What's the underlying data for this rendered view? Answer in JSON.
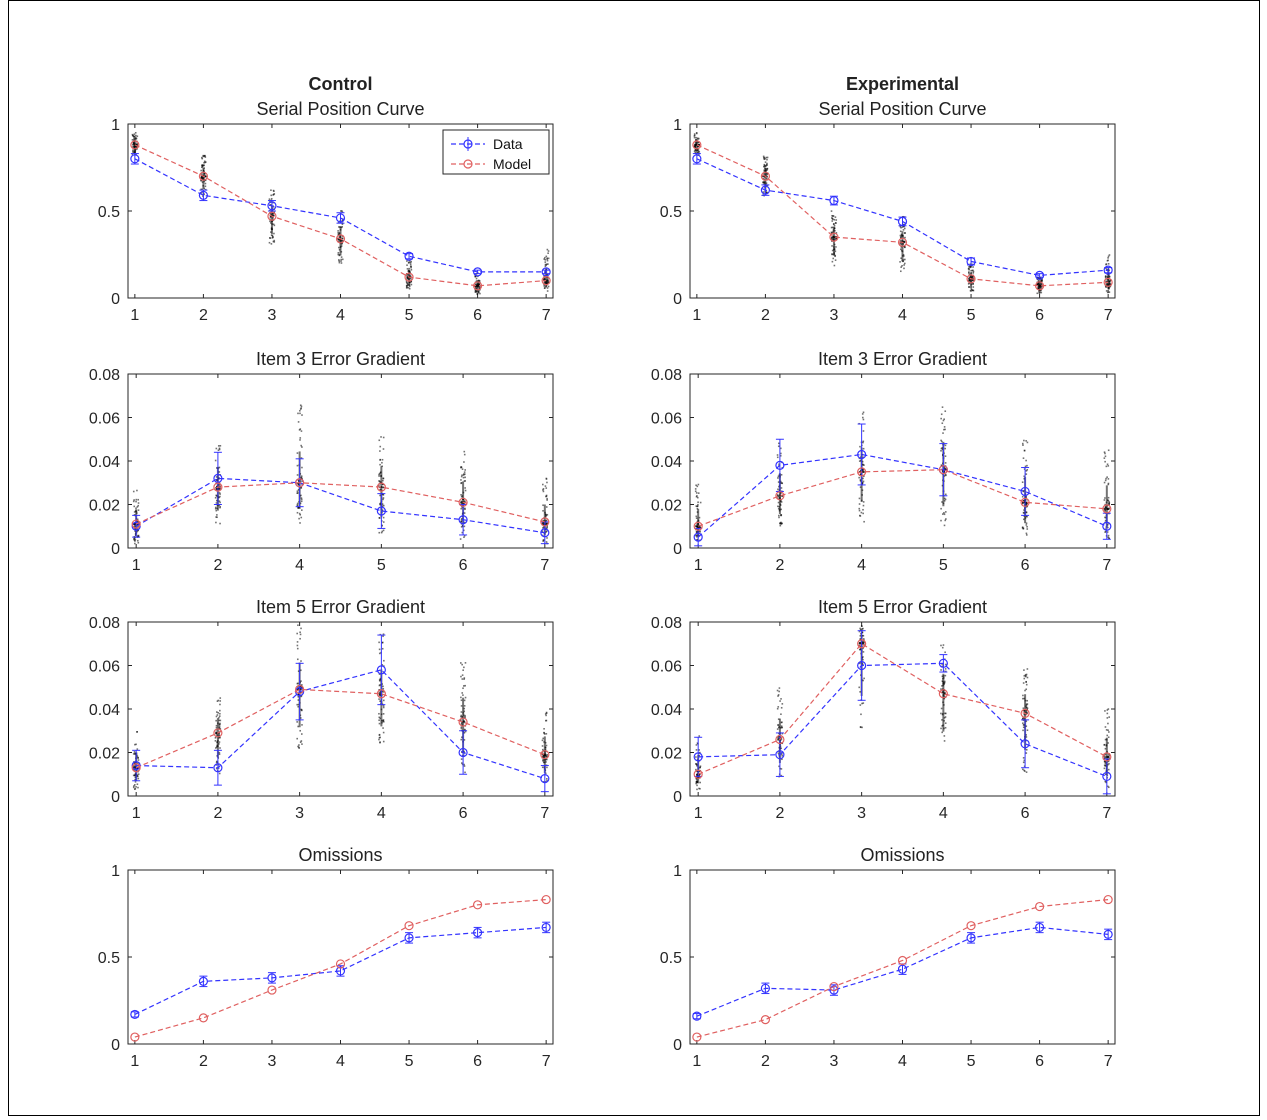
{
  "colors": {
    "data": "#3333ff",
    "model": "#e06060",
    "axis": "#262626",
    "scatter": "#000000"
  },
  "legend": {
    "data_label": "Data",
    "model_label": "Model",
    "placement": "top-right"
  },
  "chart_data": [
    {
      "type": "line",
      "column_title": "Control",
      "title": "Serial Position Curve",
      "x": [
        1,
        2,
        3,
        4,
        5,
        6,
        7
      ],
      "xticklabels": [
        "1",
        "2",
        "3",
        "4",
        "5",
        "6",
        "7"
      ],
      "ylim": [
        0,
        1
      ],
      "yticks": [
        0,
        0.5,
        1
      ],
      "yticklabels": [
        "0",
        "0.5",
        "1"
      ],
      "legend": true,
      "series": [
        {
          "name": "Data",
          "values": [
            0.8,
            0.59,
            0.53,
            0.46,
            0.24,
            0.15,
            0.15
          ],
          "err": [
            0.03,
            0.03,
            0.03,
            0.03,
            0.015,
            0.01,
            0.01
          ]
        },
        {
          "name": "Model",
          "values": [
            0.88,
            0.7,
            0.47,
            0.34,
            0.12,
            0.07,
            0.1
          ]
        }
      ],
      "spread": [
        [
          0.82,
          0.95
        ],
        [
          0.58,
          0.82
        ],
        [
          0.3,
          0.62
        ],
        [
          0.18,
          0.52
        ],
        [
          0.05,
          0.22
        ],
        [
          0.02,
          0.15
        ],
        [
          0.04,
          0.28
        ]
      ]
    },
    {
      "type": "line",
      "column_title": "Experimental",
      "title": "Serial Position Curve",
      "x": [
        1,
        2,
        3,
        4,
        5,
        6,
        7
      ],
      "xticklabels": [
        "1",
        "2",
        "3",
        "4",
        "5",
        "6",
        "7"
      ],
      "ylim": [
        0,
        1
      ],
      "yticks": [
        0,
        0.5,
        1
      ],
      "yticklabels": [
        "0",
        "0.5",
        "1"
      ],
      "legend": false,
      "series": [
        {
          "name": "Data",
          "values": [
            0.8,
            0.62,
            0.56,
            0.44,
            0.21,
            0.13,
            0.16
          ],
          "err": [
            0.03,
            0.03,
            0.025,
            0.025,
            0.02,
            0.01,
            0.015
          ]
        },
        {
          "name": "Model",
          "values": [
            0.88,
            0.7,
            0.35,
            0.32,
            0.11,
            0.07,
            0.09
          ]
        }
      ],
      "spread": [
        [
          0.82,
          0.95
        ],
        [
          0.58,
          0.82
        ],
        [
          0.18,
          0.5
        ],
        [
          0.15,
          0.48
        ],
        [
          0.04,
          0.2
        ],
        [
          0.02,
          0.12
        ],
        [
          0.03,
          0.25
        ]
      ]
    },
    {
      "type": "line",
      "title": "Item 3 Error Gradient",
      "x": [
        1,
        2,
        3,
        4,
        5,
        6
      ],
      "xticklabels": [
        "1",
        "2",
        "4",
        "5",
        "6",
        "7"
      ],
      "ylim": [
        0,
        0.08
      ],
      "yticks": [
        0,
        0.02,
        0.04,
        0.06,
        0.08
      ],
      "yticklabels": [
        "0",
        "0.02",
        "0.04",
        "0.06",
        "0.08"
      ],
      "legend": false,
      "series": [
        {
          "name": "Data",
          "values": [
            0.01,
            0.032,
            0.03,
            0.017,
            0.013,
            0.007
          ],
          "err": [
            0.005,
            0.012,
            0.011,
            0.008,
            0.007,
            0.005
          ]
        },
        {
          "name": "Model",
          "values": [
            0.011,
            0.028,
            0.03,
            0.028,
            0.021,
            0.012
          ]
        }
      ],
      "spread": [
        [
          0.002,
          0.028
        ],
        [
          0.01,
          0.05
        ],
        [
          0.01,
          0.066
        ],
        [
          0.005,
          0.052
        ],
        [
          0.004,
          0.045
        ],
        [
          0.002,
          0.032
        ]
      ]
    },
    {
      "type": "line",
      "title": "Item 3 Error Gradient",
      "x": [
        1,
        2,
        3,
        4,
        5,
        6
      ],
      "xticklabels": [
        "1",
        "2",
        "4",
        "5",
        "6",
        "7"
      ],
      "ylim": [
        0,
        0.08
      ],
      "yticks": [
        0,
        0.02,
        0.04,
        0.06,
        0.08
      ],
      "yticklabels": [
        "0",
        "0.02",
        "0.04",
        "0.06",
        "0.08"
      ],
      "legend": false,
      "series": [
        {
          "name": "Data",
          "values": [
            0.005,
            0.038,
            0.043,
            0.036,
            0.026,
            0.01
          ],
          "err": [
            0.004,
            0.012,
            0.014,
            0.012,
            0.011,
            0.006
          ]
        },
        {
          "name": "Model",
          "values": [
            0.01,
            0.024,
            0.035,
            0.036,
            0.021,
            0.018
          ]
        }
      ],
      "spread": [
        [
          0.002,
          0.03
        ],
        [
          0.01,
          0.05
        ],
        [
          0.012,
          0.063
        ],
        [
          0.008,
          0.068
        ],
        [
          0.005,
          0.05
        ],
        [
          0.004,
          0.045
        ]
      ]
    },
    {
      "type": "line",
      "title": "Item 5 Error Gradient",
      "x": [
        1,
        2,
        3,
        4,
        5,
        6
      ],
      "xticklabels": [
        "1",
        "2",
        "3",
        "4",
        "6",
        "7"
      ],
      "ylim": [
        0,
        0.08
      ],
      "yticks": [
        0,
        0.02,
        0.04,
        0.06,
        0.08
      ],
      "yticklabels": [
        "0",
        "0.02",
        "0.04",
        "0.06",
        "0.08"
      ],
      "legend": false,
      "series": [
        {
          "name": "Data",
          "values": [
            0.014,
            0.013,
            0.048,
            0.058,
            0.02,
            0.008
          ],
          "err": [
            0.007,
            0.008,
            0.013,
            0.016,
            0.01,
            0.006
          ]
        },
        {
          "name": "Model",
          "values": [
            0.013,
            0.029,
            0.049,
            0.047,
            0.034,
            0.019
          ]
        }
      ],
      "spread": [
        [
          0.003,
          0.03
        ],
        [
          0.01,
          0.046
        ],
        [
          0.02,
          0.08
        ],
        [
          0.022,
          0.075
        ],
        [
          0.01,
          0.062
        ],
        [
          0.005,
          0.04
        ]
      ]
    },
    {
      "type": "line",
      "title": "Item 5 Error Gradient",
      "x": [
        1,
        2,
        3,
        4,
        5,
        6
      ],
      "xticklabels": [
        "1",
        "2",
        "3",
        "4",
        "6",
        "7"
      ],
      "ylim": [
        0,
        0.08
      ],
      "yticks": [
        0,
        0.02,
        0.04,
        0.06,
        0.08
      ],
      "yticklabels": [
        "0",
        "0.02",
        "0.04",
        "0.06",
        "0.08"
      ],
      "legend": false,
      "series": [
        {
          "name": "Data",
          "values": [
            0.018,
            0.019,
            0.06,
            0.061,
            0.024,
            0.009
          ],
          "err": [
            0.009,
            0.01,
            0.016,
            0.004,
            0.011,
            0.008
          ]
        },
        {
          "name": "Model",
          "values": [
            0.01,
            0.026,
            0.07,
            0.047,
            0.038,
            0.018
          ]
        }
      ],
      "spread": [
        [
          0.003,
          0.032
        ],
        [
          0.008,
          0.05
        ],
        [
          0.03,
          0.08
        ],
        [
          0.018,
          0.07
        ],
        [
          0.01,
          0.06
        ],
        [
          0.004,
          0.04
        ]
      ]
    },
    {
      "type": "line",
      "title": "Omissions",
      "x": [
        1,
        2,
        3,
        4,
        5,
        6,
        7
      ],
      "xticklabels": [
        "1",
        "2",
        "3",
        "4",
        "5",
        "6",
        "7"
      ],
      "ylim": [
        0,
        1
      ],
      "yticks": [
        0,
        0.5,
        1
      ],
      "yticklabels": [
        "0",
        "0.5",
        "1"
      ],
      "legend": false,
      "series": [
        {
          "name": "Data",
          "values": [
            0.17,
            0.36,
            0.38,
            0.42,
            0.61,
            0.64,
            0.67
          ],
          "err": [
            0.015,
            0.03,
            0.03,
            0.03,
            0.03,
            0.03,
            0.03
          ]
        },
        {
          "name": "Model",
          "values": [
            0.04,
            0.15,
            0.31,
            0.46,
            0.68,
            0.8,
            0.83
          ]
        }
      ]
    },
    {
      "type": "line",
      "title": "Omissions",
      "x": [
        1,
        2,
        3,
        4,
        5,
        6,
        7
      ],
      "xticklabels": [
        "1",
        "2",
        "3",
        "4",
        "5",
        "6",
        "7"
      ],
      "ylim": [
        0,
        1
      ],
      "yticks": [
        0,
        0.5,
        1
      ],
      "yticklabels": [
        "0",
        "0.5",
        "1"
      ],
      "legend": false,
      "series": [
        {
          "name": "Data",
          "values": [
            0.16,
            0.32,
            0.31,
            0.43,
            0.61,
            0.67,
            0.63
          ],
          "err": [
            0.015,
            0.03,
            0.03,
            0.03,
            0.03,
            0.03,
            0.03
          ]
        },
        {
          "name": "Model",
          "values": [
            0.04,
            0.14,
            0.33,
            0.48,
            0.68,
            0.79,
            0.83
          ]
        }
      ]
    }
  ]
}
